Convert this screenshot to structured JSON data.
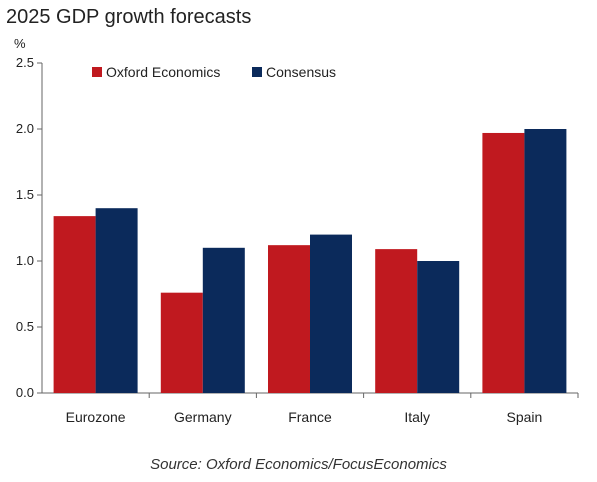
{
  "title": "2025 GDP growth forecasts",
  "unit": "%",
  "source": "Source: Oxford Economics/FocusEconomics",
  "colors": {
    "oxford": "#c0191f",
    "consensus": "#0b2a5b"
  },
  "chart_data": {
    "type": "bar",
    "title": "2025 GDP growth forecasts",
    "ylabel": "%",
    "xlabel": "",
    "ylim": [
      0,
      2.5
    ],
    "yticks": [
      "0.0",
      "0.5",
      "1.0",
      "1.5",
      "2.0",
      "2.5"
    ],
    "grid": false,
    "legend": "top-left",
    "categories": [
      "Eurozone",
      "Germany",
      "France",
      "Italy",
      "Spain"
    ],
    "series": [
      {
        "name": "Oxford Economics",
        "values": [
          1.34,
          0.76,
          1.12,
          1.09,
          1.97
        ]
      },
      {
        "name": "Consensus",
        "values": [
          1.4,
          1.1,
          1.2,
          1.0,
          2.0
        ]
      }
    ]
  }
}
